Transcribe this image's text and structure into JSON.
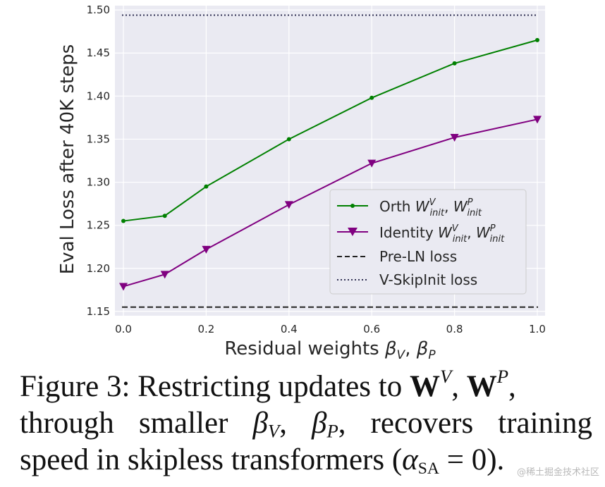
{
  "chart_data": {
    "type": "line",
    "xlabel": "Residual weights β_V, β_P",
    "ylabel": "Eval Loss after 40K steps",
    "xlim": [
      0.0,
      1.0
    ],
    "ylim": [
      1.145,
      1.505
    ],
    "x_ticks": [
      "0.0",
      "0.2",
      "0.4",
      "0.6",
      "0.8",
      "1.0"
    ],
    "y_ticks": [
      "1.15",
      "1.20",
      "1.25",
      "1.30",
      "1.35",
      "1.40",
      "1.45",
      "1.50"
    ],
    "grid": true,
    "legend_position": "lower-right",
    "series": [
      {
        "name": "Orth W^V_init, W^P_init",
        "color": "#008000",
        "marker": "circle",
        "x": [
          0.0,
          0.1,
          0.2,
          0.4,
          0.6,
          0.8,
          1.0
        ],
        "y": [
          1.255,
          1.261,
          1.295,
          1.35,
          1.398,
          1.438,
          1.465
        ]
      },
      {
        "name": "Identity W^V_init, W^P_init",
        "color": "#800080",
        "marker": "triangle-down",
        "x": [
          0.0,
          0.1,
          0.2,
          0.4,
          0.6,
          0.8,
          1.0
        ],
        "y": [
          1.179,
          1.193,
          1.222,
          1.274,
          1.322,
          1.352,
          1.373
        ]
      }
    ],
    "reference_lines": [
      {
        "name": "Pre-LN loss",
        "y": 1.155,
        "style": "dashed",
        "color": "#222222"
      },
      {
        "name": "V-SkipInit loss",
        "y": 1.494,
        "style": "dotted",
        "color": "#333355"
      }
    ]
  },
  "legend": {
    "orth_prefix": "Orth ",
    "identity_prefix": "Identity ",
    "w": "W",
    "sup_v": "V",
    "sup_p": "P",
    "sub_init": "init",
    "comma": ", ",
    "preln": "Pre-LN loss",
    "vskip": "V-SkipInit loss"
  },
  "xlabel_parts": {
    "text": "Residual weights ",
    "beta": "β",
    "sub_v": "V",
    "sep": ", ",
    "sub_p": "P"
  },
  "caption": {
    "line1": {
      "lead": "Figure 3: Restricting updates to ",
      "w": "W",
      "sup_v": "V",
      "sep": ", ",
      "sup_p": "P",
      "trail": ","
    },
    "line2": {
      "lead": "through smaller ",
      "beta": "β",
      "sub_v": "V",
      "sep": ", ",
      "sub_p": "P",
      "trail": ", recovers training"
    },
    "line3": {
      "lead": "speed in skipless transformers (",
      "alpha": "α",
      "sub_sa": "SA",
      "trail": " = 0)."
    }
  },
  "watermark": "@稀土掘金技术社区"
}
